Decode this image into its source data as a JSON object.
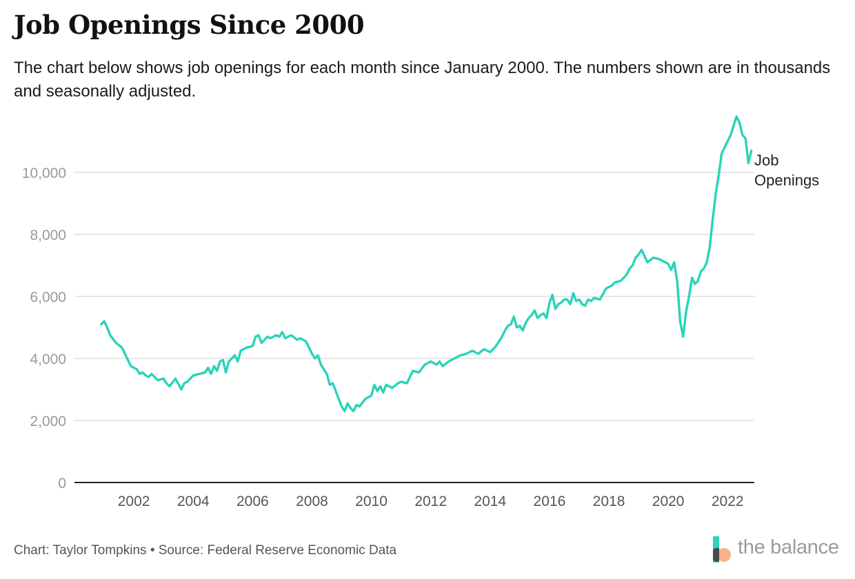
{
  "header": {
    "title": "Job Openings Since 2000",
    "subtitle": "The chart below shows job openings for each month since January 2000. The numbers shown are in thousands and seasonally adjusted."
  },
  "footer": {
    "credit": "Chart: Taylor Tompkins • Source: Federal Reserve Economic Data"
  },
  "logo": {
    "text": "the balance"
  },
  "colors": {
    "line": "#2ad4b8",
    "grid": "#dddddd",
    "axis": "#222222",
    "tick": "#999999",
    "logo_teal": "#2ad4b8",
    "logo_peach": "#f6b48c",
    "logo_dark": "#4a4a4a"
  },
  "chart_data": {
    "type": "line",
    "title": "Job Openings Since 2000",
    "xlabel": "",
    "ylabel": "",
    "xlim": [
      2000.0,
      2022.9
    ],
    "ylim": [
      0,
      12000
    ],
    "yticks": [
      0,
      2000,
      4000,
      6000,
      8000,
      10000
    ],
    "ytick_labels": [
      "0",
      "2,000",
      "4,000",
      "6,000",
      "8,000",
      "10,000"
    ],
    "xticks": [
      2002,
      2004,
      2006,
      2008,
      2010,
      2012,
      2014,
      2016,
      2018,
      2020,
      2022
    ],
    "xtick_labels": [
      "2002",
      "2004",
      "2006",
      "2008",
      "2010",
      "2012",
      "2014",
      "2016",
      "2018",
      "2020",
      "2022"
    ],
    "grid": true,
    "legend": "right",
    "series": [
      {
        "name": "Job Openings",
        "label_lines": [
          "Job",
          "Openings"
        ],
        "x": [
          2000.9,
          2001.0,
          2001.1,
          2001.2,
          2001.4,
          2001.6,
          2001.8,
          2001.9,
          2002.0,
          2002.1,
          2002.2,
          2002.3,
          2002.4,
          2002.5,
          2002.6,
          2002.8,
          2003.0,
          2003.1,
          2003.2,
          2003.4,
          2003.6,
          2003.7,
          2003.8,
          2004.0,
          2004.2,
          2004.4,
          2004.5,
          2004.6,
          2004.7,
          2004.8,
          2004.9,
          2005.0,
          2005.1,
          2005.2,
          2005.4,
          2005.5,
          2005.6,
          2005.8,
          2006.0,
          2006.1,
          2006.2,
          2006.3,
          2006.4,
          2006.5,
          2006.6,
          2006.8,
          2006.9,
          2007.0,
          2007.1,
          2007.2,
          2007.3,
          2007.5,
          2007.6,
          2007.8,
          2008.0,
          2008.1,
          2008.2,
          2008.3,
          2008.4,
          2008.5,
          2008.6,
          2008.7,
          2008.8,
          2008.9,
          2009.0,
          2009.1,
          2009.2,
          2009.3,
          2009.4,
          2009.5,
          2009.6,
          2009.8,
          2010.0,
          2010.1,
          2010.2,
          2010.3,
          2010.4,
          2010.5,
          2010.7,
          2010.9,
          2011.0,
          2011.2,
          2011.4,
          2011.6,
          2011.8,
          2012.0,
          2012.1,
          2012.2,
          2012.3,
          2012.4,
          2012.6,
          2012.8,
          2013.0,
          2013.2,
          2013.4,
          2013.6,
          2013.8,
          2014.0,
          2014.2,
          2014.4,
          2014.5,
          2014.6,
          2014.7,
          2014.8,
          2014.9,
          2015.0,
          2015.1,
          2015.2,
          2015.3,
          2015.4,
          2015.5,
          2015.6,
          2015.7,
          2015.8,
          2015.9,
          2016.0,
          2016.1,
          2016.2,
          2016.3,
          2016.4,
          2016.5,
          2016.6,
          2016.7,
          2016.8,
          2016.9,
          2017.0,
          2017.1,
          2017.2,
          2017.3,
          2017.4,
          2017.5,
          2017.7,
          2017.9,
          2018.0,
          2018.1,
          2018.2,
          2018.4,
          2018.6,
          2018.7,
          2018.8,
          2018.9,
          2019.0,
          2019.1,
          2019.2,
          2019.3,
          2019.5,
          2019.7,
          2019.9,
          2020.0,
          2020.1,
          2020.2,
          2020.3,
          2020.4,
          2020.5,
          2020.6,
          2020.7,
          2020.8,
          2020.9,
          2021.0,
          2021.1,
          2021.2,
          2021.3,
          2021.4,
          2021.5,
          2021.6,
          2021.7,
          2021.8,
          2021.9,
          2022.0,
          2022.1,
          2022.2,
          2022.3,
          2022.4,
          2022.5,
          2022.6,
          2022.7,
          2022.8
        ],
        "values": [
          5100,
          5200,
          5000,
          4750,
          4500,
          4350,
          3950,
          3750,
          3700,
          3650,
          3500,
          3550,
          3450,
          3400,
          3500,
          3300,
          3350,
          3200,
          3100,
          3350,
          3000,
          3200,
          3250,
          3450,
          3500,
          3550,
          3700,
          3500,
          3750,
          3600,
          3900,
          3950,
          3550,
          3900,
          4100,
          3900,
          4250,
          4350,
          4400,
          4700,
          4750,
          4500,
          4600,
          4700,
          4650,
          4750,
          4700,
          4850,
          4650,
          4700,
          4750,
          4600,
          4650,
          4550,
          4150,
          4000,
          4100,
          3800,
          3650,
          3500,
          3150,
          3200,
          2950,
          2700,
          2450,
          2300,
          2550,
          2400,
          2300,
          2500,
          2450,
          2700,
          2800,
          3150,
          2950,
          3100,
          2900,
          3150,
          3050,
          3200,
          3250,
          3200,
          3600,
          3550,
          3800,
          3900,
          3850,
          3800,
          3900,
          3750,
          3900,
          4000,
          4100,
          4150,
          4250,
          4150,
          4300,
          4200,
          4400,
          4700,
          4900,
          5050,
          5100,
          5350,
          5000,
          5050,
          4900,
          5150,
          5300,
          5400,
          5550,
          5300,
          5400,
          5450,
          5300,
          5800,
          6050,
          5600,
          5750,
          5800,
          5900,
          5900,
          5750,
          6100,
          5850,
          5900,
          5750,
          5700,
          5900,
          5850,
          5950,
          5900,
          6250,
          6300,
          6350,
          6450,
          6500,
          6700,
          6900,
          7000,
          7250,
          7350,
          7500,
          7300,
          7100,
          7250,
          7200,
          7100,
          7050,
          6850,
          7100,
          6500,
          5200,
          4700,
          5500,
          6000,
          6600,
          6400,
          6500,
          6800,
          6900,
          7100,
          7600,
          8500,
          9300,
          9900,
          10600,
          10800,
          11000,
          11200,
          11500,
          11800,
          11600,
          11200,
          11100,
          10300,
          10700
        ]
      }
    ]
  }
}
